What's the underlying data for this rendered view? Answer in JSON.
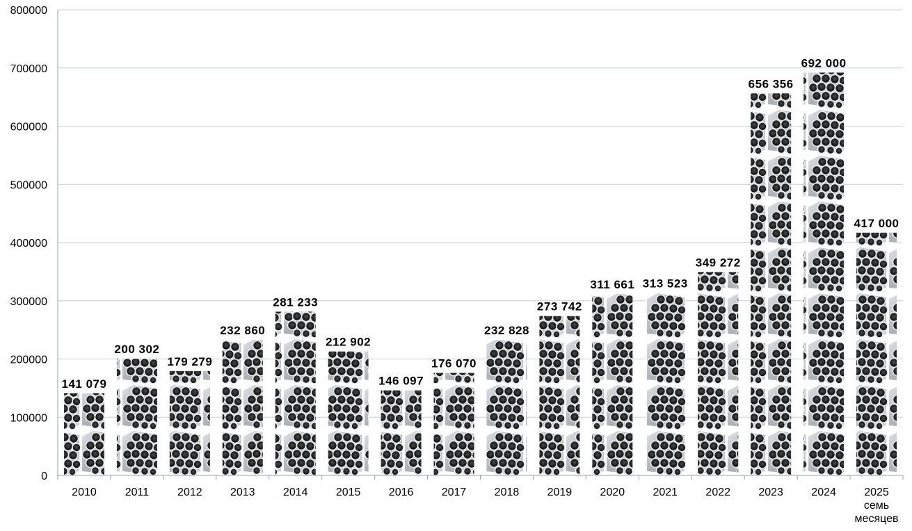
{
  "chart_data": {
    "type": "bar",
    "title": "",
    "xlabel": "",
    "ylabel": "",
    "ylim": [
      0,
      800000
    ],
    "yticks": [
      0,
      100000,
      200000,
      300000,
      400000,
      500000,
      600000,
      700000,
      800000
    ],
    "ytick_labels": [
      "0",
      "100000",
      "200000",
      "300000",
      "400000",
      "500000",
      "600000",
      "700000",
      "800000"
    ],
    "grid": true,
    "legend": "none",
    "bar_fill": "pipe-bundle-pattern",
    "colors": {
      "grid": "#c7ccd6",
      "pipe_dark": "#1c1c1c",
      "pipe_metal": "#b8bcc2"
    },
    "categories": [
      "2010",
      "2011",
      "2012",
      "2013",
      "2014",
      "2015",
      "2016",
      "2017",
      "2018",
      "2019",
      "2020",
      "2021",
      "2022",
      "2023",
      "2024",
      "2025 семь месяцев"
    ],
    "category_lines": [
      [
        "2010"
      ],
      [
        "2011"
      ],
      [
        "2012"
      ],
      [
        "2013"
      ],
      [
        "2014"
      ],
      [
        "2015"
      ],
      [
        "2016"
      ],
      [
        "2017"
      ],
      [
        "2018"
      ],
      [
        "2019"
      ],
      [
        "2020"
      ],
      [
        "2021"
      ],
      [
        "2022"
      ],
      [
        "2023"
      ],
      [
        "2024"
      ],
      [
        "2025",
        "семь",
        "месяцев"
      ]
    ],
    "values": [
      141079,
      200302,
      179279,
      232860,
      281233,
      212902,
      146097,
      176070,
      232828,
      273742,
      311661,
      313523,
      349272,
      656356,
      692000,
      417000
    ],
    "data_labels": [
      "141 079",
      "200 302",
      "179 279",
      "232 860",
      "281 233",
      "212 902",
      "146 097",
      "176 070",
      "232 828",
      "273 742",
      "311 661",
      "313 523",
      "349 272",
      "656 356",
      "692 000",
      "417 000"
    ]
  }
}
